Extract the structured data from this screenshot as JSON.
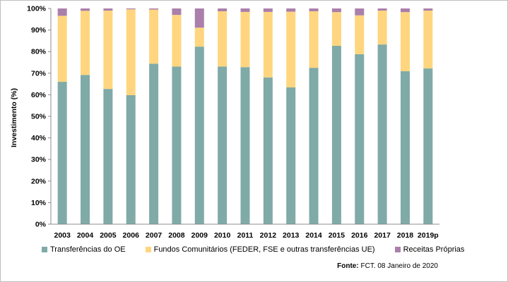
{
  "chart_data": {
    "type": "bar",
    "stacked": true,
    "percent": true,
    "ylabel": "Investimento (%)",
    "ylim": [
      0,
      100
    ],
    "yticks": [
      0,
      10,
      20,
      30,
      40,
      50,
      60,
      70,
      80,
      90,
      100
    ],
    "ytick_labels": [
      "0%",
      "10%",
      "20%",
      "30%",
      "40%",
      "50%",
      "60%",
      "70%",
      "80%",
      "90%",
      "100%"
    ],
    "categories": [
      "2003",
      "2004",
      "2005",
      "2006",
      "2007",
      "2008",
      "2009",
      "2010",
      "2011",
      "2012",
      "2013",
      "2014",
      "2015",
      "2016",
      "2017",
      "2018",
      "2019p"
    ],
    "series": [
      {
        "name": "Transferências do OE",
        "color": "#7faaa7",
        "values": [
          66,
          69.2,
          62.7,
          59.8,
          74.4,
          73.1,
          82.3,
          73.1,
          72.8,
          68,
          63.4,
          72.5,
          82.7,
          78.8,
          83.3,
          70.9,
          72.2
        ]
      },
      {
        "name": "Fundos Comunitários (FEDER, FSE e outras transferências UE)",
        "color": "#ffd67f",
        "values": [
          30.6,
          29.7,
          36.3,
          39.8,
          25.1,
          23.9,
          8.8,
          25.6,
          25.6,
          30.4,
          35.1,
          26.2,
          15.6,
          18,
          15.7,
          27.4,
          26.8
        ]
      },
      {
        "name": "Receitas Próprias",
        "color": "#aa7faa",
        "values": [
          3.4,
          1.1,
          1,
          0.4,
          0.5,
          3,
          8.9,
          1.3,
          1.6,
          1.6,
          1.5,
          1.3,
          1.7,
          3.2,
          1,
          1.7,
          1
        ]
      }
    ],
    "grid": false,
    "legend": "bottom"
  },
  "source": {
    "label": "Fonte:",
    "text": "FCT. 08 Janeiro de 2020"
  }
}
